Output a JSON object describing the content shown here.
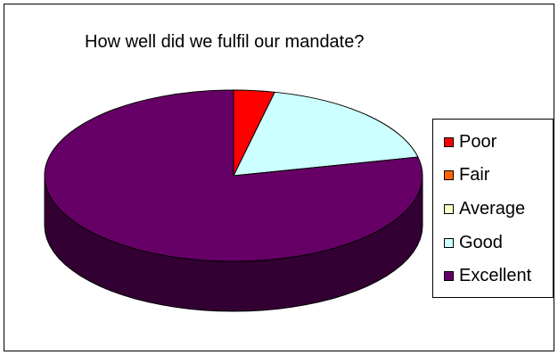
{
  "chart_data": {
    "type": "pie",
    "title": "How well did we fulfil our mandate?",
    "categories": [
      "Poor",
      "Fair",
      "Average",
      "Good",
      "Excellent"
    ],
    "values": [
      3.5,
      0,
      0,
      18,
      78.5
    ],
    "colors": [
      "#ff0000",
      "#ff6600",
      "#ffffcc",
      "#ccffff",
      "#660066"
    ],
    "legend_position": "right",
    "three_d": true
  }
}
